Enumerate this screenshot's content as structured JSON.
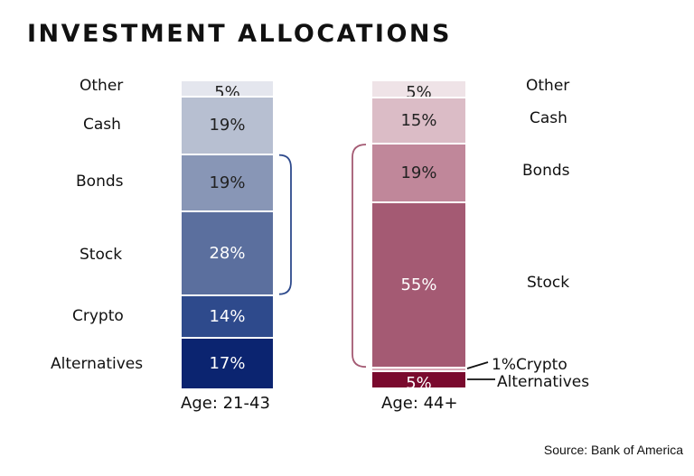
{
  "chart_data": {
    "type": "bar",
    "stacked": true,
    "title": "INVESTMENT ALLOCATIONS",
    "source": "Source: Bank of America",
    "categories": [
      "Age: 21-43",
      "Age: 44+"
    ],
    "series_order_top_to_bottom": [
      "Other",
      "Cash",
      "Bonds",
      "Stock",
      "Crypto",
      "Alternatives"
    ],
    "bars": [
      {
        "name": "Age: 21-43",
        "segments": [
          {
            "label": "Other",
            "value": 5,
            "text": "5%",
            "color": "#e4e6ee",
            "textColor": "#222"
          },
          {
            "label": "Cash",
            "value": 19,
            "text": "19%",
            "color": "#b7bfd1",
            "textColor": "#222"
          },
          {
            "label": "Bonds",
            "value": 19,
            "text": "19%",
            "color": "#8896b6",
            "textColor": "#222"
          },
          {
            "label": "Stock",
            "value": 28,
            "text": "28%",
            "color": "#5b6f9e",
            "textColor": "#fff"
          },
          {
            "label": "Crypto",
            "value": 14,
            "text": "14%",
            "color": "#2e4a8c",
            "textColor": "#fff"
          },
          {
            "label": "Alternatives",
            "value": 17,
            "text": "17%",
            "color": "#0b2470",
            "textColor": "#fff"
          }
        ]
      },
      {
        "name": "Age: 44+",
        "segments": [
          {
            "label": "Other",
            "value": 5,
            "text": "5%",
            "color": "#efe3e7",
            "textColor": "#222"
          },
          {
            "label": "Cash",
            "value": 15,
            "text": "15%",
            "color": "#dbbcc6",
            "textColor": "#222"
          },
          {
            "label": "Bonds",
            "value": 19,
            "text": "19%",
            "color": "#c0879a",
            "textColor": "#222"
          },
          {
            "label": "Stock",
            "value": 55,
            "text": "55%",
            "color": "#a45a73",
            "textColor": "#fff"
          },
          {
            "label": "Crypto",
            "value": 1,
            "text": "1%",
            "color": "#d9a9b8",
            "textColor": "#222"
          },
          {
            "label": "Alternatives",
            "value": 5,
            "text": "5%",
            "color": "#7a0a2e",
            "textColor": "#fff"
          }
        ]
      }
    ],
    "bracket_colors": [
      "#2e4a8c",
      "#a45a73"
    ]
  },
  "labels": {
    "left": [
      "Other",
      "Cash",
      "Bonds",
      "Stock",
      "Crypto",
      "Alternatives"
    ],
    "right": [
      "Other",
      "Cash",
      "Bonds",
      "Stock",
      "1%Crypto",
      "Alternatives"
    ]
  }
}
